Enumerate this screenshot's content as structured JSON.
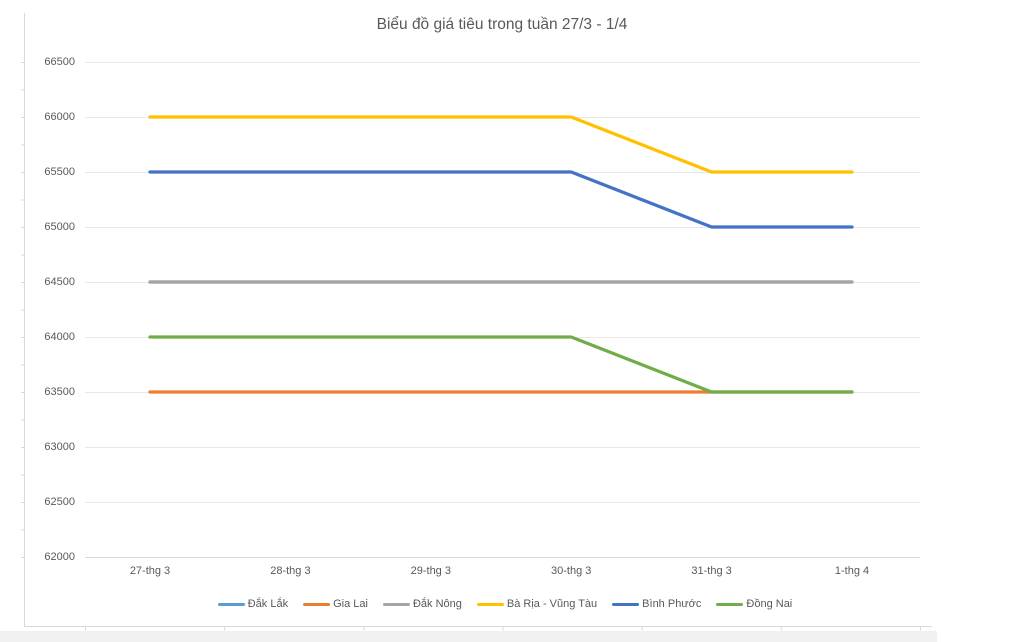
{
  "chart_title": "Biểu đồ giá tiêu trong tuần 27/3 - 1/4",
  "chart_data": {
    "type": "line",
    "title": "Biểu đồ giá tiêu trong tuần 27/3 - 1/4",
    "categories": [
      "27-thg 3",
      "28-thg 3",
      "29-thg 3",
      "30-thg 3",
      "31-thg 3",
      "1-thg 4"
    ],
    "series": [
      {
        "name": "Đắk Lắk",
        "color": "#5B9BD5",
        "values": [
          64500,
          64500,
          64500,
          64500,
          64500,
          64500
        ],
        "hidden": true
      },
      {
        "name": "Gia Lai",
        "color": "#ED7D31",
        "values": [
          63500,
          63500,
          63500,
          63500,
          63500,
          63500
        ]
      },
      {
        "name": "Đắk Nông",
        "color": "#A5A5A5",
        "values": [
          64500,
          64500,
          64500,
          64500,
          64500,
          64500
        ]
      },
      {
        "name": "Bà Rịa - Vũng Tàu",
        "color": "#FFC000",
        "values": [
          66000,
          66000,
          66000,
          66000,
          65500,
          65500
        ]
      },
      {
        "name": "Bình Phước",
        "color": "#4472C4",
        "values": [
          65500,
          65500,
          65500,
          65500,
          65000,
          65000
        ]
      },
      {
        "name": "Đồng Nai",
        "color": "#70AD47",
        "values": [
          64000,
          64000,
          64000,
          64000,
          63500,
          63500
        ]
      }
    ],
    "xlabel": "",
    "ylabel": "",
    "ylim": [
      62000,
      66500
    ],
    "ytick_step": 500,
    "yticks": [
      66500,
      66000,
      65500,
      65000,
      64500,
      64000,
      63500,
      63000,
      62500,
      62000
    ],
    "grid": true,
    "legend_position": "bottom"
  },
  "colors": {
    "background": "#ffffff",
    "gridline": "#e8e8e8",
    "axis_line": "#d9d9d9",
    "label_text": "#595959",
    "title_text": "#595959",
    "scrollbar_track": "#f0f0f1"
  }
}
